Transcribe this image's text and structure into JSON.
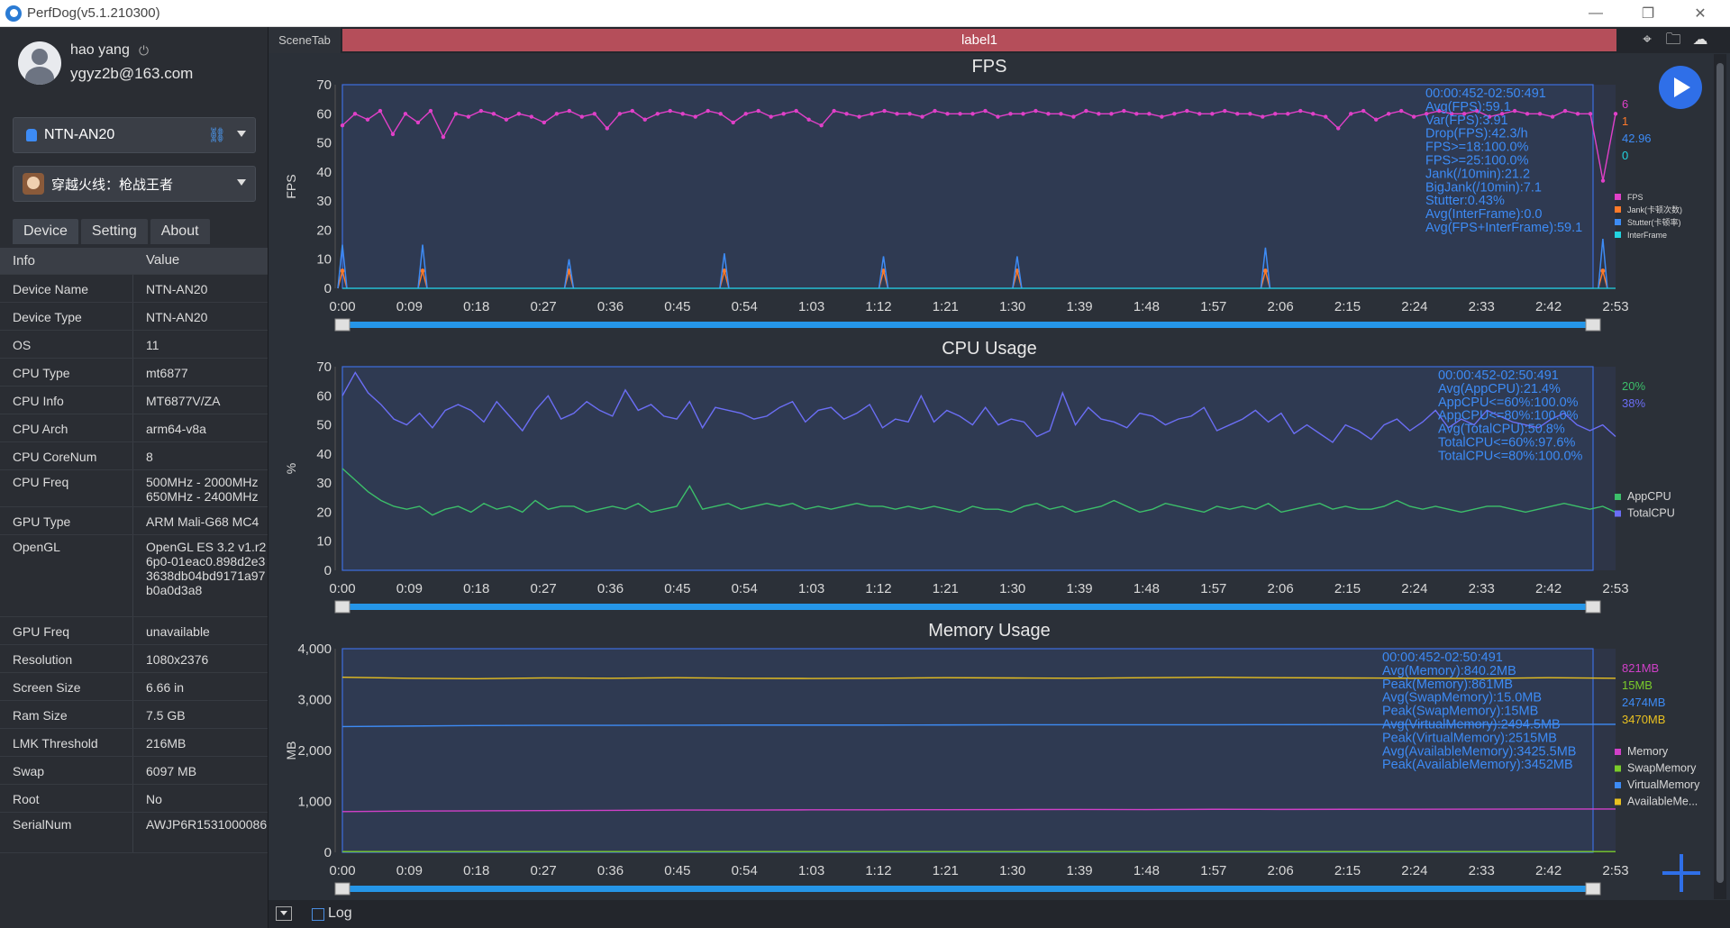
{
  "window": {
    "title": "PerfDog(v5.1.210300)",
    "controls": [
      "—",
      "❐",
      "✕"
    ]
  },
  "user": {
    "name": "hao yang",
    "power_symbol": "⏻",
    "email": "ygyz2b@163.com"
  },
  "device_select": {
    "value": "NTN-AN20"
  },
  "app_select": {
    "value": "穿越火线：枪战王者"
  },
  "tabs": [
    "Device",
    "Setting",
    "About"
  ],
  "info_table": {
    "header": {
      "key": "Info",
      "value": "Value"
    },
    "rows": [
      {
        "k": "Device Name",
        "v": "NTN-AN20"
      },
      {
        "k": "Device Type",
        "v": "NTN-AN20"
      },
      {
        "k": "OS",
        "v": "11"
      },
      {
        "k": "CPU Type",
        "v": "mt6877"
      },
      {
        "k": "CPU Info",
        "v": "MT6877V/ZA"
      },
      {
        "k": "CPU Arch",
        "v": "arm64-v8a"
      },
      {
        "k": "CPU CoreNum",
        "v": "8"
      },
      {
        "k": "CPU Freq",
        "v": "500MHz - 2000MHz\n650MHz - 2400MHz"
      },
      {
        "k": "GPU Type",
        "v": "ARM Mali-G68 MC4"
      },
      {
        "k": "OpenGL",
        "v": "OpenGL ES 3.2 v1.r26p0-01eac0.898d2e33638db04bd9171a97b0a0d3a8"
      },
      {
        "k": "GPU Freq",
        "v": "unavailable"
      },
      {
        "k": "Resolution",
        "v": "1080x2376"
      },
      {
        "k": "Screen Size",
        "v": "6.66 in"
      },
      {
        "k": "Ram Size",
        "v": "7.5 GB"
      },
      {
        "k": "LMK Threshold",
        "v": "216MB"
      },
      {
        "k": "Swap",
        "v": "6097 MB"
      },
      {
        "k": "Root",
        "v": "No"
      },
      {
        "k": "SerialNum",
        "v": "AWJP6R1531000086"
      }
    ]
  },
  "scene": {
    "tab_label": "SceneTab",
    "label": "label1"
  },
  "bottom": {
    "log_label": "Log"
  },
  "colors": {
    "fps": "#e040c8",
    "jank": "#ff7a2a",
    "stutter": "#3d8bf5",
    "interframe": "#22d3e0",
    "appcpu": "#3cbf6a",
    "totalcpu": "#6b6ef5",
    "memory": "#d040c8",
    "swap": "#7acc2a",
    "virtual": "#3d8bf5",
    "available": "#e8c020",
    "stats": "#3d8bf5",
    "plot_bg": "#2f3a52",
    "plot_border": "#3d6ee0"
  },
  "x_ticks": [
    "0:00",
    "0:09",
    "0:18",
    "0:27",
    "0:36",
    "0:45",
    "0:54",
    "1:03",
    "1:12",
    "1:21",
    "1:30",
    "1:39",
    "1:48",
    "1:57",
    "2:06",
    "2:15",
    "2:24",
    "2:33",
    "2:42",
    "2:53"
  ],
  "chart_data": [
    {
      "type": "line",
      "title": "FPS",
      "ylabel": "FPS",
      "ylim": [
        0,
        70
      ],
      "y_ticks": [
        "70",
        "60",
        "50",
        "40",
        "30",
        "20",
        "10",
        "0"
      ],
      "series": [
        {
          "name": "FPS",
          "values": [
            56,
            60,
            58,
            61,
            53,
            60,
            57,
            61,
            52,
            60,
            59,
            61,
            60,
            58,
            60,
            59,
            57,
            60,
            61,
            59,
            60,
            55,
            60,
            61,
            58,
            60,
            61,
            60,
            59,
            61,
            60,
            57,
            60,
            61,
            59,
            60,
            61,
            58,
            56,
            61,
            60,
            59,
            60,
            61,
            60,
            60,
            59,
            61,
            60,
            60,
            60,
            61,
            59,
            60,
            60,
            61,
            60,
            60,
            59,
            61,
            60,
            60,
            61,
            60,
            60,
            59,
            60,
            61,
            60,
            60,
            61,
            60,
            60,
            59,
            60,
            60,
            61,
            60,
            59,
            55,
            60,
            61,
            58,
            60,
            61,
            59,
            60,
            61,
            60,
            60,
            61,
            59,
            60,
            61,
            60,
            60,
            59,
            61,
            60,
            60,
            37,
            60
          ]
        },
        {
          "name": "Jank(卡顿次数)",
          "values": [
            [
              0,
              6
            ],
            [
              0.063,
              6
            ],
            [
              0.178,
              6
            ],
            [
              0.3,
              6
            ],
            [
              0.425,
              6
            ],
            [
              0.53,
              6
            ],
            [
              0.725,
              6
            ],
            [
              0.99,
              6
            ]
          ]
        },
        {
          "name": "Stutter(卡顿率)",
          "values": [
            [
              0,
              15
            ],
            [
              0.063,
              15
            ],
            [
              0.178,
              10
            ],
            [
              0.3,
              12
            ],
            [
              0.425,
              11
            ],
            [
              0.53,
              11
            ],
            [
              0.725,
              14
            ],
            [
              0.99,
              17
            ]
          ]
        },
        {
          "name": "InterFrame",
          "values": [
            0
          ]
        }
      ],
      "stats": [
        "00:00:452-02:50:491",
        "Avg(FPS):59.1",
        "Var(FPS):3.91",
        "Drop(FPS):42.3/h",
        "FPS>=18:100.0%",
        "FPS>=25:100.0%",
        "Jank(/10min):21.2",
        "BigJank(/10min):7.1",
        "Stutter:0.43%",
        "Avg(InterFrame):0.0",
        "Avg(FPS+InterFrame):59.1"
      ],
      "current_values": [
        "6",
        "1",
        "42.96",
        "0"
      ],
      "legend": [
        "FPS",
        "Jank(卡顿次数)",
        "Stutter(卡顿率)",
        "InterFrame"
      ]
    },
    {
      "type": "line",
      "title": "CPU Usage",
      "ylabel": "%",
      "ylim": [
        0,
        70
      ],
      "y_ticks": [
        "70",
        "60",
        "50",
        "40",
        "30",
        "20",
        "10",
        "0"
      ],
      "series": [
        {
          "name": "AppCPU",
          "values": [
            35,
            31,
            27,
            24,
            22,
            21,
            22,
            19,
            21,
            22,
            20,
            23,
            21,
            22,
            20,
            24,
            21,
            22,
            22,
            20,
            21,
            22,
            21,
            23,
            20,
            21,
            22,
            29,
            21,
            22,
            23,
            21,
            22,
            23,
            22,
            23,
            21,
            22,
            21,
            22,
            23,
            22,
            22,
            21,
            22,
            21,
            22,
            21,
            20,
            22,
            21,
            21,
            20,
            22,
            23,
            21,
            22,
            20,
            21,
            22,
            24,
            22,
            20,
            21,
            23,
            22,
            21,
            20,
            22,
            21,
            22,
            21,
            23,
            20,
            21,
            22,
            23,
            21,
            22,
            21,
            21,
            22,
            24,
            22,
            21,
            22,
            21,
            20,
            21,
            22,
            22,
            21,
            20,
            21,
            22,
            23,
            22,
            21,
            22,
            20
          ]
        },
        {
          "name": "TotalCPU",
          "values": [
            60,
            68,
            61,
            57,
            52,
            50,
            54,
            49,
            55,
            57,
            55,
            51,
            58,
            53,
            48,
            55,
            60,
            52,
            54,
            58,
            55,
            53,
            62,
            55,
            57,
            53,
            52,
            58,
            49,
            56,
            55,
            54,
            52,
            53,
            56,
            58,
            51,
            55,
            56,
            52,
            54,
            57,
            49,
            52,
            51,
            60,
            51,
            55,
            53,
            50,
            56,
            50,
            52,
            51,
            46,
            48,
            61,
            50,
            56,
            52,
            51,
            49,
            54,
            53,
            50,
            52,
            53,
            56,
            48,
            50,
            52,
            55,
            51,
            54,
            47,
            50,
            47,
            44,
            50,
            48,
            45,
            50,
            52,
            48,
            51,
            55,
            49,
            52,
            50,
            55,
            53,
            51,
            50,
            49,
            52,
            54,
            50,
            48,
            50,
            46
          ]
        }
      ],
      "stats": [
        "00:00:452-02:50:491",
        "Avg(AppCPU):21.4%",
        "AppCPU<=60%:100.0%",
        "AppCPU<=80%:100.0%",
        "Avg(TotalCPU):50.8%",
        "TotalCPU<=60%:97.6%",
        "TotalCPU<=80%:100.0%"
      ],
      "current_values": [
        "20%",
        "38%"
      ],
      "legend": [
        "AppCPU",
        "TotalCPU"
      ]
    },
    {
      "type": "line",
      "title": "Memory Usage",
      "ylabel": "MB",
      "ylim": [
        0,
        4000
      ],
      "y_ticks": [
        "4,000",
        "3,000",
        "2,000",
        "1,000",
        "0"
      ],
      "series": [
        {
          "name": "Memory",
          "values": [
            800,
            810,
            815,
            820,
            825,
            830,
            830,
            835,
            835,
            838,
            840,
            842,
            840,
            845,
            843,
            845,
            847,
            848,
            850,
            850
          ]
        },
        {
          "name": "SwapMemory",
          "values": [
            15,
            15,
            15,
            15,
            15,
            15,
            15,
            15,
            15,
            15,
            15,
            15,
            15,
            15,
            15,
            15,
            15,
            15,
            15,
            15
          ]
        },
        {
          "name": "VirtualMemory",
          "values": [
            2470,
            2480,
            2490,
            2495,
            2495,
            2497,
            2500,
            2500,
            2500,
            2502,
            2505,
            2505,
            2505,
            2505,
            2508,
            2510,
            2510,
            2512,
            2515,
            2515
          ]
        },
        {
          "name": "AvailableMemory",
          "values": [
            3440,
            3420,
            3410,
            3425,
            3420,
            3430,
            3420,
            3415,
            3420,
            3430,
            3425,
            3420,
            3430,
            3440,
            3430,
            3425,
            3420,
            3415,
            3430,
            3420
          ]
        }
      ],
      "stats": [
        "00:00:452-02:50:491",
        "Avg(Memory):840.2MB",
        "Peak(Memory):861MB",
        "Avg(SwapMemory):15.0MB",
        "Peak(SwapMemory):15MB",
        "Avg(VirtualMemory):2494.5MB",
        "Peak(VirtualMemory):2515MB",
        "Avg(AvailableMemory):3425.5MB",
        "Peak(AvailableMemory):3452MB"
      ],
      "current_values": [
        "821MB",
        "15MB",
        "2474MB",
        "3470MB"
      ],
      "legend": [
        "Memory",
        "SwapMemory",
        "VirtualMemory",
        "AvailableMe..."
      ]
    }
  ]
}
